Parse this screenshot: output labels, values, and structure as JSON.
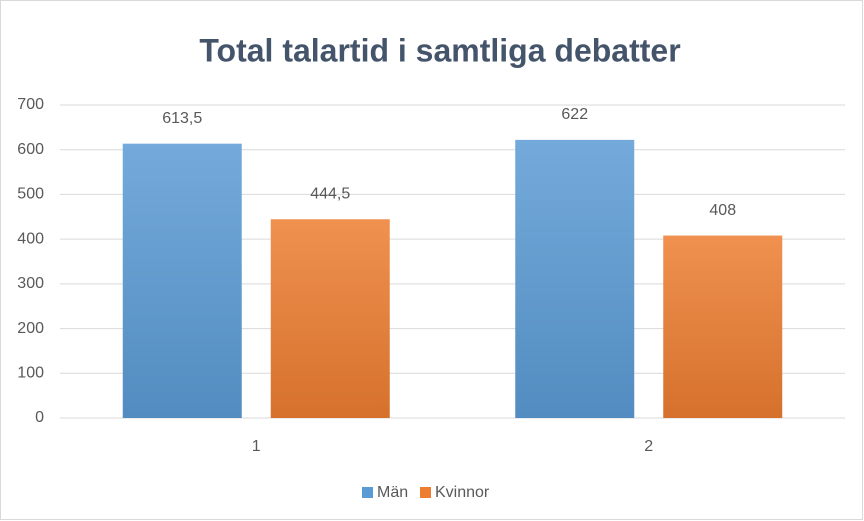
{
  "chart_data": {
    "type": "bar",
    "title": "Total talartid i samtliga debatter",
    "categories": [
      "1",
      "2"
    ],
    "series": [
      {
        "name": "Män",
        "color": "#5b9bd5",
        "values": [
          613.5,
          622
        ],
        "value_labels": [
          "613,5",
          "622"
        ]
      },
      {
        "name": "Kvinnor",
        "color": "#ed7d31",
        "values": [
          444.5,
          408
        ],
        "value_labels": [
          "444,5",
          "408"
        ]
      }
    ],
    "ylim": [
      0,
      700
    ],
    "yticks": [
      0,
      100,
      200,
      300,
      400,
      500,
      600,
      700
    ],
    "grid": true,
    "legend": "bottom"
  }
}
